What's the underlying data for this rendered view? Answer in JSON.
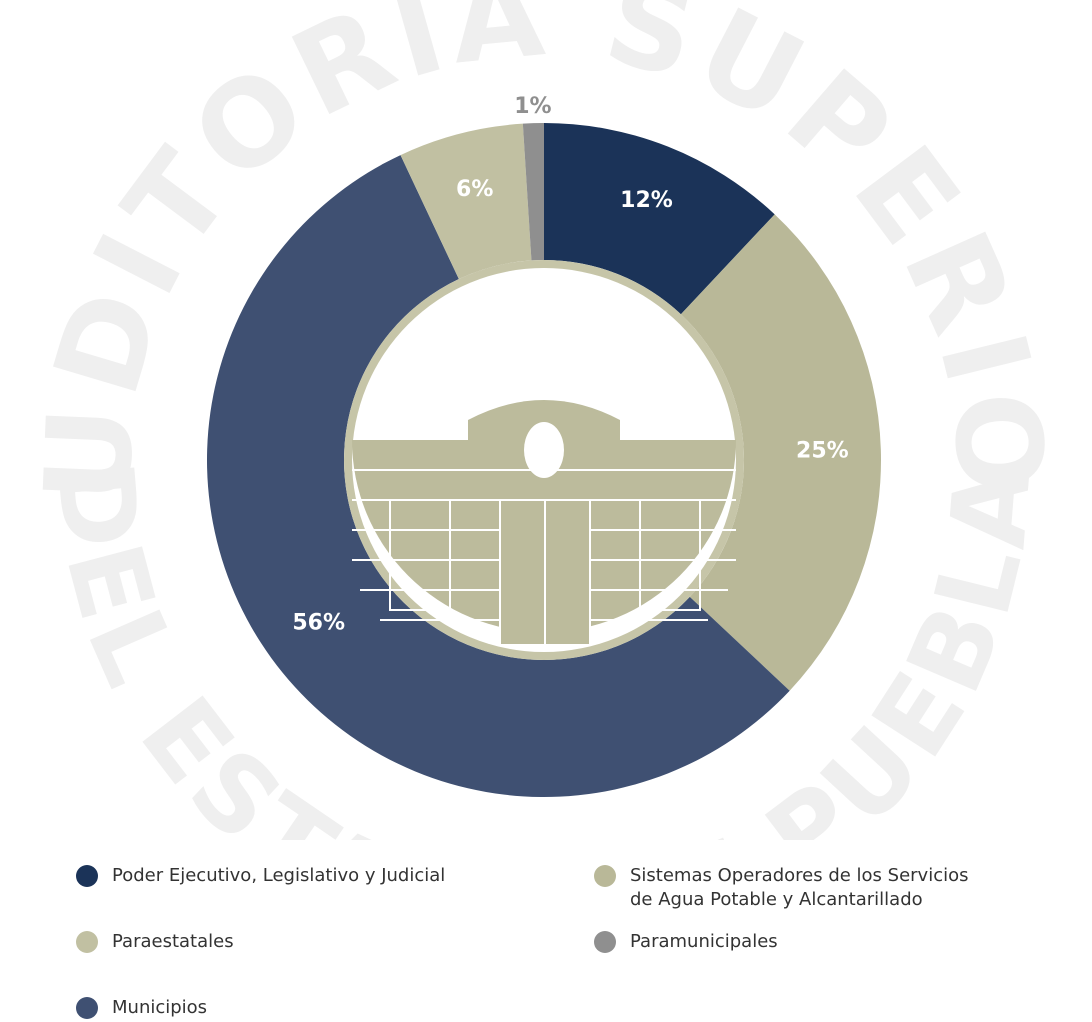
{
  "chart_data": {
    "type": "donut",
    "watermark": [
      "AUDITORIA SUPERIOR",
      "DEL ESTADO DE PUEBLA"
    ],
    "categories": [
      "Poder Ejecutivo, Legislativo y Judicial",
      "Sistemas Operadores de los Servicios de Agua Potable y Alcantarillado",
      "Municipios",
      "Paraestatales",
      "Paramunicipales"
    ],
    "values": [
      12,
      25,
      56,
      6,
      1
    ],
    "value_labels": [
      "12%",
      "25%",
      "56%",
      "6%",
      "1%"
    ],
    "colors": [
      "#1b3358",
      "#b9b898",
      "#3f5072",
      "#c1c0a2",
      "#8f8f8f"
    ]
  }
}
